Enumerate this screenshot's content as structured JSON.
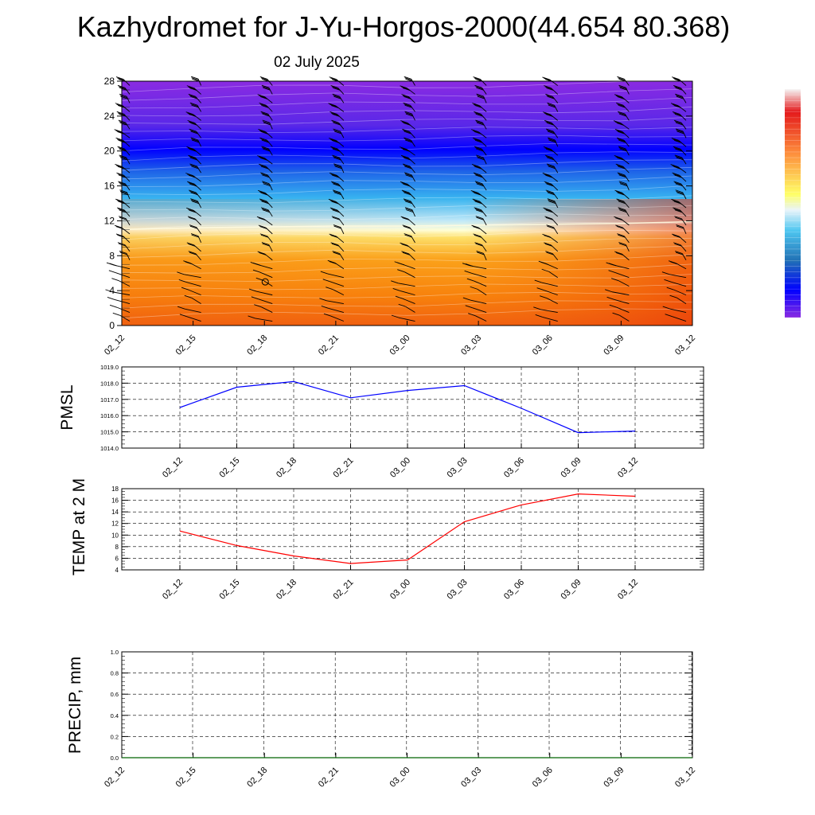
{
  "title": "Kazhydromet for J-Yu-Horgos-2000(44.654 80.368)",
  "date": "02 July 2025",
  "time_labels": [
    "02_12",
    "02_15",
    "02_18",
    "02_21",
    "03_00",
    "03_03",
    "03_06",
    "03_09",
    "03_12"
  ],
  "chart_data": [
    {
      "type": "heatmap",
      "name": "cross-section",
      "ylim": [
        0,
        28
      ],
      "yticks": [
        0,
        4,
        8,
        12,
        16,
        20,
        24,
        28
      ],
      "x": [
        "02_12",
        "02_15",
        "02_18",
        "02_21",
        "03_00",
        "03_03",
        "03_06",
        "03_09",
        "03_12"
      ],
      "freezing_level": [
        11,
        11.2,
        11.3,
        11.4,
        11.4,
        11.5,
        11.6,
        11.7,
        11.9
      ],
      "colorbar": {
        "colors": [
          "#f5f5f5",
          "#e41a1c",
          "#fb6a4a",
          "#fd8d3c",
          "#feb24c",
          "#ffff66",
          "#c6dbef",
          "#4ec6f0",
          "#2171b5",
          "#0000ff",
          "#6a3dc4",
          "#8a2be2"
        ]
      }
    },
    {
      "type": "line",
      "name": "pmsl",
      "ylabel": "PMSL",
      "ylim": [
        1014,
        1019
      ],
      "yticks": [
        "1014.0",
        "1015.0",
        "1016.0",
        "1017.0",
        "1018.0",
        "1019.0"
      ],
      "x": [
        "02_12",
        "02_15",
        "02_18",
        "02_21",
        "03_00",
        "03_03",
        "03_06",
        "03_09",
        "03_12"
      ],
      "values": [
        1016.5,
        1017.75,
        1018.1,
        1017.1,
        1017.55,
        1017.85,
        1016.45,
        1014.95,
        1015.05
      ],
      "color": "#0000ff"
    },
    {
      "type": "line",
      "name": "temp2m",
      "ylabel": "TEMP at 2 M",
      "ylim": [
        4,
        18
      ],
      "yticks": [
        "4",
        "6",
        "8",
        "10",
        "12",
        "14",
        "16",
        "18"
      ],
      "x": [
        "02_12",
        "02_15",
        "02_18",
        "02_21",
        "03_00",
        "03_03",
        "03_06",
        "03_09",
        "03_12"
      ],
      "values": [
        10.7,
        8.2,
        6.4,
        5.1,
        5.7,
        12.3,
        15.2,
        17.1,
        16.7
      ],
      "color": "#ff0000"
    },
    {
      "type": "line",
      "name": "precip",
      "ylabel": "PRECIP, mm",
      "ylim": [
        0,
        1
      ],
      "yticks": [
        "0.0",
        "0.2",
        "0.4",
        "0.6",
        "0.8",
        "1.0"
      ],
      "x": [
        "02_12",
        "02_15",
        "02_18",
        "02_21",
        "03_00",
        "03_03",
        "03_06",
        "03_09",
        "03_12"
      ],
      "values": [
        0,
        0,
        0,
        0,
        0,
        0,
        0,
        0,
        0
      ],
      "color": "#006400"
    }
  ]
}
